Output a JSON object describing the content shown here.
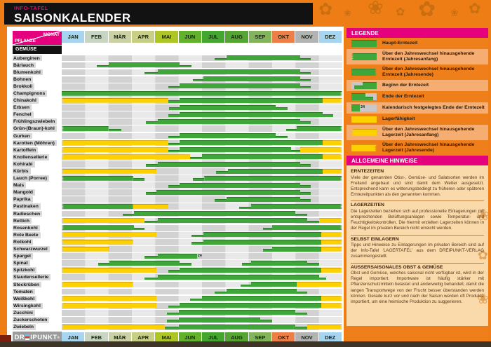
{
  "header": {
    "kicker": "INFO-TAFEL",
    "title": "SAISONKALENDER"
  },
  "axis": {
    "monat": "MONAT",
    "pflanze": "PFLANZE"
  },
  "section_label": "GEMÜSE",
  "colors": {
    "accent_magenta": "#e5007d",
    "harvest_green": "#3fa63a",
    "storage_yellow": "#fdd000",
    "sidebar_orange": "#ee7f1b",
    "sidebar_orange_light": "#f5ad72",
    "notes_bg": "#fad9ab"
  },
  "logo": {
    "left": "DR",
    "right": "IPUNKT",
    "trademark": "®"
  },
  "legend": {
    "title": "LEGENDE",
    "items": [
      {
        "icon": "g",
        "label": "Haupt-Erntezeit"
      },
      {
        "icon": "g-jl",
        "label": "Über den Jahreswechsel hinausgehende Erntezeit (Jahresanfang)"
      },
      {
        "icon": "g-jr",
        "label": "Über den Jahreswechsel hinausgehende Erntezeit (Jahresende)"
      },
      {
        "icon": "begin",
        "label": "Beginn der Erntezeit"
      },
      {
        "icon": "end",
        "label": "Ende der Erntezeit"
      },
      {
        "icon": "end24",
        "label": "Kalendarisch festgelegtes Ende der Erntezeit"
      },
      {
        "icon": "y",
        "label": "Lagerfähigkeit"
      },
      {
        "icon": "y-jl",
        "label": "Über den Jahreswechsel hinausgehende Lagerzeit (Jahresanfang)"
      },
      {
        "icon": "y-jr",
        "label": "Über den Jahreswechsel hinausgehende Lagerzeit (Jahresende)"
      }
    ]
  },
  "notes": {
    "title": "ALLGEMEINE HINWEISE",
    "sections": [
      {
        "title": "ERNTEZEITEN",
        "body": "Viele der genannten Obst-, Gemüse- und Salatsorten werden im Freiland angebaut und sind damit dem Wetter ausgesetzt. Entsprechend kann es witterungsbedingt zu früheren oder späteren Erntezeitpunkten als den genannten kommen."
      },
      {
        "title": "LAGERZEITEN",
        "body": "Die Lagerzeiten beziehen sich auf professionelle Einlagerungen mit entsprechenden Belüftungsanlagen sowie Temperatur- und Feuchtigkeitskontrollen. Die hiermit erzielten Lagerzeiten können in der Regel im privaten Bereich nicht erreicht werden."
      },
      {
        "title": "SELBST EINLAGERN",
        "body": "Tipps und Hinweise zu Einlagerungen im privaten Bereich sind auf der Info-Tafel 'LAGERTAFEL' aus dem DREIPUNKT-VERLAG zusammengestellt."
      },
      {
        "title": "AUSSERSAISONALES OBST & GEMÜSE",
        "body": "Obst und Gemüse, welches saisonal nicht verfügbar ist, wird in der Regel importiert. Importware ist häufig stärker mit Pflanzenschutzmitteln belastet und anderweitig behandelt, damit die langen Transportwege von der Frucht besser überstanden werden können. Gerade kurz vor und nach der Saison werden oft Produkte importiert, um eine heimische Produktion zu suggerieren."
      }
    ]
  },
  "chart_data": {
    "type": "bar",
    "variant": "seasonal-gantt-calendar",
    "title": "SAISONKALENDER – GEMÜSE",
    "x_unit": "Monat (0 = Jahresanfang, 12 = Jahresende)",
    "months": [
      {
        "label": "JAN",
        "color": "#a7d4ef"
      },
      {
        "label": "FEB",
        "color": "#c8d5c3"
      },
      {
        "label": "MÄR",
        "color": "#cbd0a5"
      },
      {
        "label": "APR",
        "color": "#c8ce86"
      },
      {
        "label": "MAI",
        "color": "#adc626"
      },
      {
        "label": "JUN",
        "color": "#61b12d"
      },
      {
        "label": "JUL",
        "color": "#44a52f"
      },
      {
        "label": "AUG",
        "color": "#55a434"
      },
      {
        "label": "SEP",
        "color": "#83b45c"
      },
      {
        "label": "OKT",
        "color": "#ee7e47"
      },
      {
        "label": "NOV",
        "color": "#b3b3b3"
      },
      {
        "label": "DEZ",
        "color": "#a7d4ef"
      }
    ],
    "segment_key": "c: g=Erntezeit(grün) y=Lagerzeit(gelb); s/e=Segmentanfang/-ende; fs/fe=vollhoher Teil; jl/jr=über Jahreswechsel gezackt; m=kalendarisches Ende",
    "rows": [
      {
        "name": "Auberginen",
        "segs": [
          {
            "c": "g",
            "s": 6.55,
            "fs": 7.05,
            "fe": 10.2,
            "e": 10.65
          }
        ]
      },
      {
        "name": "Bärlauch",
        "segs": [
          {
            "c": "g",
            "s": 1.5,
            "fs": 2.0,
            "fe": 5.05,
            "e": 5.55
          }
        ]
      },
      {
        "name": "Blumenkohl",
        "segs": [
          {
            "c": "g",
            "s": 3.55,
            "fs": 4.1,
            "fe": 10.2,
            "e": 10.65
          }
        ]
      },
      {
        "name": "Bohnen",
        "segs": [
          {
            "c": "g",
            "s": 5.6,
            "fs": 6.05,
            "fe": 10.2,
            "e": 10.65
          }
        ]
      },
      {
        "name": "Brokkoli",
        "segs": [
          {
            "c": "g",
            "s": 4.55,
            "fs": 5.05,
            "fe": 10.2,
            "e": 10.65
          }
        ]
      },
      {
        "name": "Champignons",
        "segs": [
          {
            "c": "g",
            "s": 0,
            "e": 12,
            "jl": true,
            "jr": true
          }
        ]
      },
      {
        "name": "Chinakohl",
        "segs": [
          {
            "c": "y",
            "s": 0,
            "e": 4.55,
            "jl": true
          },
          {
            "c": "g",
            "s": 4.55,
            "fs": 5.05,
            "e": 11.15
          },
          {
            "c": "y",
            "s": 11.15,
            "e": 12,
            "jr": true
          }
        ]
      },
      {
        "name": "Erbsen",
        "segs": [
          {
            "c": "g",
            "s": 4.6,
            "fs": 5.05,
            "fe": 9.15,
            "e": 9.65
          }
        ]
      },
      {
        "name": "Fenchel",
        "segs": [
          {
            "c": "g",
            "s": 4.55,
            "fs": 5.05,
            "fe": 11.15,
            "e": 11.6
          }
        ]
      },
      {
        "name": "Frühlingszwiebeln",
        "segs": [
          {
            "c": "g",
            "s": 3.6,
            "fs": 4.1,
            "fe": 10.2,
            "e": 10.65
          }
        ]
      },
      {
        "name": "Grün-(Braun)-kohl",
        "segs": [
          {
            "c": "g",
            "s": 0,
            "fe": 2.0,
            "e": 2.55,
            "jl": true
          },
          {
            "c": "g",
            "s": 9.6,
            "fs": 10.05,
            "e": 12,
            "jr": true
          }
        ]
      },
      {
        "name": "Gurken",
        "segs": [
          {
            "c": "g",
            "s": 4.55,
            "fs": 5.05,
            "fe": 9.15,
            "e": 9.65
          }
        ]
      },
      {
        "name": "Karotten (Möhren)",
        "segs": [
          {
            "c": "y",
            "s": 0,
            "e": 4.55,
            "jl": true
          },
          {
            "c": "g",
            "s": 4.55,
            "fs": 5.05,
            "e": 11.15
          },
          {
            "c": "y",
            "s": 11.15,
            "e": 12,
            "jr": true
          }
        ]
      },
      {
        "name": "Kartoffeln",
        "segs": [
          {
            "c": "y",
            "s": 0,
            "e": 4.55,
            "jl": true
          },
          {
            "c": "g",
            "s": 4.55,
            "fs": 5.05,
            "fe": 9.8,
            "e": 10.2
          },
          {
            "c": "y",
            "s": 10.2,
            "e": 12,
            "jr": true
          }
        ]
      },
      {
        "name": "Knollensellerie",
        "segs": [
          {
            "c": "y",
            "s": 0,
            "e": 5.5,
            "jl": true
          },
          {
            "c": "g",
            "s": 5.5,
            "fs": 6.0,
            "e": 11.15
          },
          {
            "c": "y",
            "s": 11.15,
            "e": 12,
            "jr": true
          }
        ]
      },
      {
        "name": "Kohlrabi",
        "segs": [
          {
            "c": "g",
            "s": 3.6,
            "fs": 4.1,
            "fe": 10.2,
            "e": 10.65
          }
        ]
      },
      {
        "name": "Kürbis",
        "segs": [
          {
            "c": "y",
            "s": 0,
            "e": 4.05,
            "jl": true
          },
          {
            "c": "g",
            "s": 6.6,
            "fs": 7.1,
            "e": 11.15
          },
          {
            "c": "y",
            "s": 11.15,
            "e": 12,
            "jr": true
          }
        ]
      },
      {
        "name": "Lauch (Porree)",
        "segs": [
          {
            "c": "g",
            "s": 0,
            "fe": 3.05,
            "e": 3.55,
            "jl": true
          },
          {
            "c": "g",
            "s": 5.6,
            "fs": 6.1,
            "e": 12,
            "jr": true
          }
        ]
      },
      {
        "name": "Mais",
        "segs": [
          {
            "c": "g",
            "s": 4.55,
            "fs": 5.05,
            "fe": 10.2,
            "e": 10.65
          }
        ]
      },
      {
        "name": "Mangold",
        "segs": [
          {
            "c": "g",
            "s": 3.6,
            "fs": 4.05,
            "fe": 10.2,
            "e": 10.65
          }
        ]
      },
      {
        "name": "Paprika",
        "segs": [
          {
            "c": "g",
            "s": 6.55,
            "fs": 7.05,
            "fe": 10.2,
            "e": 10.65
          }
        ]
      },
      {
        "name": "Pastinaken",
        "segs": [
          {
            "c": "g",
            "s": 0,
            "e": 3.05,
            "jl": true
          },
          {
            "c": "y",
            "s": 3.05,
            "e": 4.55
          },
          {
            "c": "g",
            "s": 7.6,
            "fs": 8.1,
            "e": 12,
            "jr": true
          }
        ]
      },
      {
        "name": "Radieschen",
        "segs": [
          {
            "c": "g",
            "s": 2.6,
            "fs": 3.1,
            "fe": 10.0,
            "e": 10.5
          }
        ]
      },
      {
        "name": "Rettich",
        "segs": [
          {
            "c": "y",
            "s": 0,
            "e": 3.55,
            "jl": true
          },
          {
            "c": "g",
            "s": 3.55,
            "fs": 4.1,
            "fe": 10.5,
            "e": 11.0
          },
          {
            "c": "y",
            "s": 11.0,
            "e": 12,
            "jr": true
          }
        ]
      },
      {
        "name": "Rosenkohl",
        "segs": [
          {
            "c": "g",
            "s": 0,
            "fe": 3.1,
            "e": 3.55,
            "jl": true
          },
          {
            "c": "g",
            "s": 8.6,
            "fs": 9.0,
            "e": 12,
            "jr": true
          }
        ]
      },
      {
        "name": "Rote Beete",
        "segs": [
          {
            "c": "y",
            "s": 0,
            "e": 4.05,
            "jl": true
          },
          {
            "c": "g",
            "s": 5.55,
            "fs": 6.05,
            "e": 11.1
          },
          {
            "c": "y",
            "s": 11.1,
            "e": 12,
            "jr": true
          }
        ]
      },
      {
        "name": "Rotkohl",
        "segs": [
          {
            "c": "y",
            "s": 0,
            "e": 3.05,
            "jl": true
          },
          {
            "c": "g",
            "s": 5.55,
            "fs": 6.05,
            "e": 11.1
          },
          {
            "c": "y",
            "s": 11.1,
            "e": 12,
            "jr": true
          }
        ]
      },
      {
        "name": "Schwarzwurzel",
        "segs": [
          {
            "c": "y",
            "s": 0,
            "e": 2.05,
            "jl": true
          },
          {
            "c": "g",
            "s": 8.6,
            "fs": 9.0,
            "e": 11.1
          },
          {
            "c": "y",
            "s": 11.1,
            "e": 12,
            "jr": true
          }
        ]
      },
      {
        "name": "Spargel",
        "segs": [
          {
            "c": "g",
            "s": 3.55,
            "fs": 4.1,
            "e": 5.8,
            "m": "24"
          }
        ]
      },
      {
        "name": "Spinat",
        "segs": [
          {
            "c": "g",
            "s": 1.55,
            "fs": 2.05,
            "fe": 5.05,
            "e": 5.55
          },
          {
            "c": "g",
            "s": 7.7,
            "fs": 8.1,
            "fe": 10.5,
            "e": 11.0
          }
        ]
      },
      {
        "name": "Spitzkohl",
        "segs": [
          {
            "c": "y",
            "s": 0,
            "e": 4.05,
            "jl": true
          },
          {
            "c": "g",
            "s": 4.55,
            "fs": 5.05,
            "e": 11.1
          },
          {
            "c": "y",
            "s": 11.1,
            "e": 12,
            "jr": true
          }
        ]
      },
      {
        "name": "Staudensellerie",
        "segs": [
          {
            "c": "g",
            "s": 3.55,
            "fs": 4.1,
            "fe": 11.0,
            "e": 11.3
          }
        ]
      },
      {
        "name": "Steckrüben",
        "segs": [
          {
            "c": "y",
            "s": 0,
            "e": 3.05,
            "jl": true
          },
          {
            "c": "g",
            "s": 7.65,
            "fs": 8.1,
            "e": 10.05
          },
          {
            "c": "y",
            "s": 10.05,
            "e": 12,
            "jr": true
          }
        ]
      },
      {
        "name": "Tomaten",
        "segs": [
          {
            "c": "g",
            "s": 6.55,
            "fs": 7.05,
            "fe": 10.05,
            "e": 10.5
          }
        ]
      },
      {
        "name": "Weißkohl",
        "segs": [
          {
            "c": "y",
            "s": 0,
            "e": 4.05,
            "jl": true
          },
          {
            "c": "g",
            "s": 5.5,
            "fs": 6.0,
            "e": 11.1
          },
          {
            "c": "y",
            "s": 11.1,
            "e": 12,
            "jr": true
          }
        ]
      },
      {
        "name": "Wirsingkohl",
        "segs": [
          {
            "c": "y",
            "s": 0,
            "e": 4.05,
            "jl": true
          },
          {
            "c": "g",
            "s": 4.55,
            "fs": 5.05,
            "e": 11.1
          },
          {
            "c": "y",
            "s": 11.1,
            "e": 12,
            "jr": true
          }
        ]
      },
      {
        "name": "Zucchini",
        "segs": [
          {
            "c": "g",
            "s": 4.5,
            "fs": 5.0,
            "fe": 10.0,
            "e": 10.5
          }
        ]
      },
      {
        "name": "Zuckerschoten",
        "segs": [
          {
            "c": "g",
            "s": 4.5,
            "fs": 5.0,
            "fe": 8.5,
            "e": 9.0
          }
        ]
      },
      {
        "name": "Zwiebeln",
        "segs": [
          {
            "c": "y",
            "s": 0,
            "e": 4.4,
            "jl": true
          },
          {
            "c": "g",
            "s": 4.4,
            "fs": 5.0,
            "fe": 10.0,
            "e": 10.5
          },
          {
            "c": "y",
            "s": 10.5,
            "e": 12,
            "jr": true
          }
        ]
      }
    ]
  }
}
